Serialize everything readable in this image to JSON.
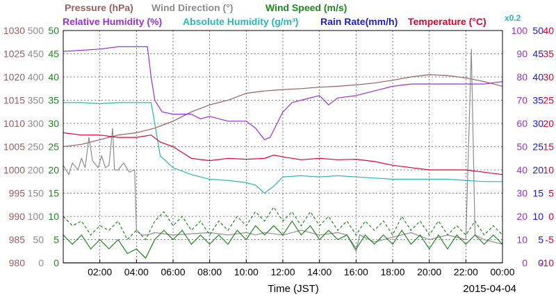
{
  "chart_data": {
    "type": "line",
    "legend": [
      {
        "label": "Pressure (hPa)",
        "color": "#9c5c5c"
      },
      {
        "label": "Wind Direction (°)",
        "color": "#8c8c8c"
      },
      {
        "label": "Wind Speed (m/s)",
        "color": "#1a8a1a"
      },
      {
        "label": "Relative Humidity (%)",
        "color": "#9a2ee0"
      },
      {
        "label": "Absolute Humidity (g/m³)",
        "color": "#27b8b8"
      },
      {
        "label": "Rain Rate(mm/h)",
        "color": "#1a1adc"
      },
      {
        "label": "Temperature (°C)",
        "color": "#e0002a"
      },
      {
        "label": "x0.2",
        "color": "#27b8b8"
      }
    ],
    "xlabel": "Time (JST)",
    "date": "2015-04-04",
    "grid": true,
    "x_ticks": [
      "02:00",
      "04:00",
      "06:00",
      "08:00",
      "10:00",
      "12:00",
      "14:00",
      "16:00",
      "18:00",
      "20:00",
      "22:00",
      "00:00"
    ],
    "xlim": [
      0,
      24
    ],
    "axes": [
      {
        "name": "Pressure (hPa)",
        "side": "left",
        "color": "#9c5c5c",
        "range": [
          980,
          1030
        ],
        "ticks": [
          "1030",
          "1025",
          "1020",
          "1015",
          "1010",
          "1005",
          "1000",
          "995",
          "990",
          "985",
          "980"
        ]
      },
      {
        "name": "Wind Direction (°)",
        "side": "left",
        "color": "#8c8c8c",
        "range": [
          0,
          500
        ],
        "ticks": [
          "500",
          "450",
          "400",
          "350",
          "300",
          "250",
          "200",
          "150",
          "100",
          "50",
          "0"
        ]
      },
      {
        "name": "Wind Speed (m/s)",
        "side": "left",
        "color": "#1a8a1a",
        "range": [
          0,
          50
        ],
        "ticks": [
          "50",
          "45",
          "40",
          "35",
          "30",
          "25",
          "20",
          "15",
          "10",
          "5",
          "0"
        ]
      },
      {
        "name": "Relative Humidity (%)",
        "side": "right",
        "color": "#9a2ee0",
        "range": [
          0,
          100
        ],
        "ticks": [
          "100",
          "90",
          "80",
          "70",
          "60",
          "50",
          "40",
          "30",
          "20",
          "10",
          "0"
        ]
      },
      {
        "name": "Rain Rate(mm/h)",
        "side": "right",
        "color": "#1a1adc",
        "range": [
          0,
          50
        ],
        "ticks": [
          "50",
          "45",
          "40",
          "35",
          "30",
          "25",
          "20",
          "15",
          "10",
          "5",
          "0"
        ]
      },
      {
        "name": "Temperature (°C)",
        "side": "right",
        "color": "#e0002a",
        "range": [
          -10,
          40
        ],
        "ticks": [
          "40",
          "35",
          "30",
          "25",
          "20",
          "15",
          "10",
          "5",
          "0",
          "-5",
          "-10"
        ]
      }
    ],
    "series": [
      {
        "name": "Pressure (hPa)",
        "color": "#9c5c5c",
        "axis": 0,
        "points": [
          [
            0,
            1005
          ],
          [
            1,
            1005.5
          ],
          [
            2,
            1006.5
          ],
          [
            3,
            1007.5
          ],
          [
            4,
            1008
          ],
          [
            5,
            1009
          ],
          [
            6,
            1010.5
          ],
          [
            7,
            1012.5
          ],
          [
            8,
            1014
          ],
          [
            9,
            1015
          ],
          [
            10,
            1016.5
          ],
          [
            11,
            1017
          ],
          [
            12,
            1017.3
          ],
          [
            13,
            1017.5
          ],
          [
            14,
            1017.8
          ],
          [
            15,
            1018
          ],
          [
            16,
            1018.3
          ],
          [
            17,
            1018.7
          ],
          [
            18,
            1019.3
          ],
          [
            19,
            1020
          ],
          [
            20,
            1020.5
          ],
          [
            21,
            1020.3
          ],
          [
            22,
            1019.8
          ],
          [
            23,
            1019
          ],
          [
            24,
            1018
          ]
        ]
      },
      {
        "name": "Wind Direction (°)",
        "color": "#8c8c8c",
        "axis": 1,
        "points": [
          [
            0,
            210
          ],
          [
            0.3,
            190
          ],
          [
            0.5,
            215
          ],
          [
            0.8,
            200
          ],
          [
            1,
            225
          ],
          [
            1.2,
            205
          ],
          [
            1.4,
            270
          ],
          [
            1.6,
            220
          ],
          [
            1.9,
            205
          ],
          [
            2.1,
            230
          ],
          [
            2.3,
            205
          ],
          [
            2.5,
            210
          ],
          [
            2.7,
            290
          ],
          [
            2.8,
            200
          ],
          [
            3.0,
            200
          ],
          [
            3.3,
            215
          ],
          [
            3.6,
            195
          ],
          [
            3.9,
            200
          ],
          [
            4.0,
            70
          ],
          [
            4.3,
            60
          ],
          [
            4.6,
            60
          ],
          [
            5,
            65
          ],
          [
            6,
            60
          ],
          [
            8,
            65
          ],
          [
            9,
            60
          ],
          [
            10,
            65
          ],
          [
            10.5,
            60
          ],
          [
            11,
            65
          ],
          [
            12,
            60
          ],
          [
            13,
            70
          ],
          [
            14,
            60
          ],
          [
            15,
            65
          ],
          [
            15.5,
            60
          ],
          [
            16,
            25
          ],
          [
            16.2,
            60
          ],
          [
            17,
            45
          ],
          [
            18,
            55
          ],
          [
            19,
            65
          ],
          [
            20,
            50
          ],
          [
            21,
            60
          ],
          [
            22,
            50
          ],
          [
            22.3,
            460
          ],
          [
            22.5,
            60
          ],
          [
            23,
            50
          ],
          [
            24,
            40
          ]
        ]
      },
      {
        "name": "Wind Speed (m/s)",
        "color": "#1a8a1a",
        "axis": 2,
        "points": [
          [
            0,
            6
          ],
          [
            0.5,
            4
          ],
          [
            1,
            6
          ],
          [
            1.5,
            3
          ],
          [
            2,
            5
          ],
          [
            2.5,
            3
          ],
          [
            3,
            5
          ],
          [
            3.5,
            2
          ],
          [
            4,
            3
          ],
          [
            4.5,
            1
          ],
          [
            5,
            5
          ],
          [
            5.5,
            7
          ],
          [
            6,
            5
          ],
          [
            6.5,
            7
          ],
          [
            7,
            4
          ],
          [
            7.5,
            6
          ],
          [
            8,
            4
          ],
          [
            8.5,
            6
          ],
          [
            9,
            4
          ],
          [
            9.5,
            7
          ],
          [
            10,
            5
          ],
          [
            10.5,
            8
          ],
          [
            11,
            6
          ],
          [
            11.5,
            8
          ],
          [
            12,
            6
          ],
          [
            12.5,
            9
          ],
          [
            13,
            6
          ],
          [
            13.5,
            8
          ],
          [
            14,
            5
          ],
          [
            14.5,
            7
          ],
          [
            15,
            5
          ],
          [
            15.5,
            6
          ],
          [
            16,
            3
          ],
          [
            16.5,
            6
          ],
          [
            17,
            4
          ],
          [
            17.5,
            6
          ],
          [
            18,
            4
          ],
          [
            18.5,
            7
          ],
          [
            19,
            4
          ],
          [
            19.5,
            6
          ],
          [
            20,
            3
          ],
          [
            20.5,
            6
          ],
          [
            21,
            3
          ],
          [
            21.5,
            6
          ],
          [
            22,
            4
          ],
          [
            22.5,
            6
          ],
          [
            23,
            4
          ],
          [
            23.5,
            6
          ],
          [
            24,
            4
          ]
        ]
      },
      {
        "name": "Wind Speed (m/s) (dashed)",
        "color": "#1a8a1a",
        "axis": 2,
        "dashed": true,
        "points": [
          [
            0,
            10
          ],
          [
            0.5,
            8
          ],
          [
            1,
            9
          ],
          [
            1.5,
            6
          ],
          [
            2,
            8
          ],
          [
            2.5,
            7
          ],
          [
            3,
            9
          ],
          [
            3.5,
            5
          ],
          [
            4,
            7
          ],
          [
            4.5,
            5
          ],
          [
            5,
            9
          ],
          [
            5.5,
            11
          ],
          [
            6,
            8
          ],
          [
            6.5,
            10
          ],
          [
            7,
            7
          ],
          [
            7.5,
            9
          ],
          [
            8,
            6
          ],
          [
            8.5,
            9
          ],
          [
            9,
            7
          ],
          [
            9.5,
            10
          ],
          [
            10,
            8
          ],
          [
            10.5,
            11
          ],
          [
            11,
            9
          ],
          [
            11.5,
            12
          ],
          [
            12,
            9
          ],
          [
            12.5,
            11
          ],
          [
            13,
            8
          ],
          [
            13.5,
            11
          ],
          [
            14,
            8
          ],
          [
            14.5,
            10
          ],
          [
            15,
            7
          ],
          [
            15.5,
            9
          ],
          [
            16,
            6
          ],
          [
            16.5,
            9
          ],
          [
            17,
            7
          ],
          [
            17.5,
            9
          ],
          [
            18,
            6
          ],
          [
            18.5,
            10
          ],
          [
            19,
            7
          ],
          [
            19.5,
            9
          ],
          [
            20,
            6
          ],
          [
            20.5,
            9
          ],
          [
            21,
            6
          ],
          [
            21.5,
            8
          ],
          [
            22,
            6
          ],
          [
            22.5,
            9
          ],
          [
            23,
            6
          ],
          [
            23.5,
            8
          ],
          [
            24,
            6
          ]
        ]
      },
      {
        "name": "Relative Humidity (%)",
        "color": "#9a2ee0",
        "axis": 3,
        "points": [
          [
            0,
            91
          ],
          [
            1,
            91.5
          ],
          [
            2,
            92
          ],
          [
            3,
            93
          ],
          [
            4,
            93
          ],
          [
            4.6,
            93
          ],
          [
            4.8,
            80
          ],
          [
            5.0,
            70
          ],
          [
            5.4,
            65
          ],
          [
            6,
            64
          ],
          [
            7,
            64
          ],
          [
            7.5,
            62
          ],
          [
            8,
            63
          ],
          [
            9,
            61
          ],
          [
            10,
            61
          ],
          [
            10.5,
            58
          ],
          [
            11,
            53
          ],
          [
            11.3,
            54
          ],
          [
            12,
            65
          ],
          [
            12.5,
            69
          ],
          [
            13,
            70
          ],
          [
            14,
            72
          ],
          [
            14.5,
            68
          ],
          [
            15,
            71
          ],
          [
            16,
            72
          ],
          [
            17,
            74
          ],
          [
            18,
            76
          ],
          [
            19,
            77
          ],
          [
            20,
            77
          ],
          [
            21,
            77
          ],
          [
            22,
            77
          ],
          [
            23,
            77
          ],
          [
            24,
            78
          ]
        ]
      },
      {
        "name": "Absolute Humidity (g/m³) x0.2",
        "color": "#27b8b8",
        "axis": 3,
        "points": [
          [
            0,
            69
          ],
          [
            1,
            69
          ],
          [
            2,
            68.5
          ],
          [
            3,
            69
          ],
          [
            4,
            69
          ],
          [
            4.8,
            69
          ],
          [
            5.0,
            60
          ],
          [
            5.3,
            46
          ],
          [
            6,
            41
          ],
          [
            7,
            38
          ],
          [
            8,
            36
          ],
          [
            9,
            35.5
          ],
          [
            10,
            34.5
          ],
          [
            10.5,
            33.5
          ],
          [
            11,
            30
          ],
          [
            11.5,
            33
          ],
          [
            12,
            37
          ],
          [
            13,
            37.5
          ],
          [
            14,
            37
          ],
          [
            15,
            37.5
          ],
          [
            16,
            37
          ],
          [
            17,
            36.5
          ],
          [
            18,
            36
          ],
          [
            19,
            36
          ],
          [
            20,
            36
          ],
          [
            21,
            36
          ],
          [
            22,
            35.5
          ],
          [
            23,
            35
          ],
          [
            24,
            35
          ]
        ]
      },
      {
        "name": "Rain Rate(mm/h)",
        "color": "#1a1adc",
        "axis": 4,
        "points": [
          [
            0,
            0
          ],
          [
            24,
            0
          ]
        ]
      },
      {
        "name": "Temperature (°C)",
        "color": "#e0002a",
        "axis": 5,
        "points": [
          [
            0,
            18
          ],
          [
            1,
            17.5
          ],
          [
            2,
            17.5
          ],
          [
            3,
            17
          ],
          [
            4,
            17
          ],
          [
            4.8,
            17.5
          ],
          [
            5.3,
            16
          ],
          [
            6,
            15
          ],
          [
            7,
            12.5
          ],
          [
            8,
            12
          ],
          [
            9,
            12.5
          ],
          [
            10,
            12.3
          ],
          [
            11,
            12.5
          ],
          [
            11.5,
            13.2
          ],
          [
            12,
            12.8
          ],
          [
            13,
            12.2
          ],
          [
            14,
            12.5
          ],
          [
            15,
            12.2
          ],
          [
            16,
            12.3
          ],
          [
            17,
            11.8
          ],
          [
            18,
            11
          ],
          [
            19,
            10.5
          ],
          [
            20,
            10
          ],
          [
            21,
            10
          ],
          [
            22,
            10
          ],
          [
            23,
            9.5
          ],
          [
            24,
            9
          ]
        ]
      }
    ]
  }
}
